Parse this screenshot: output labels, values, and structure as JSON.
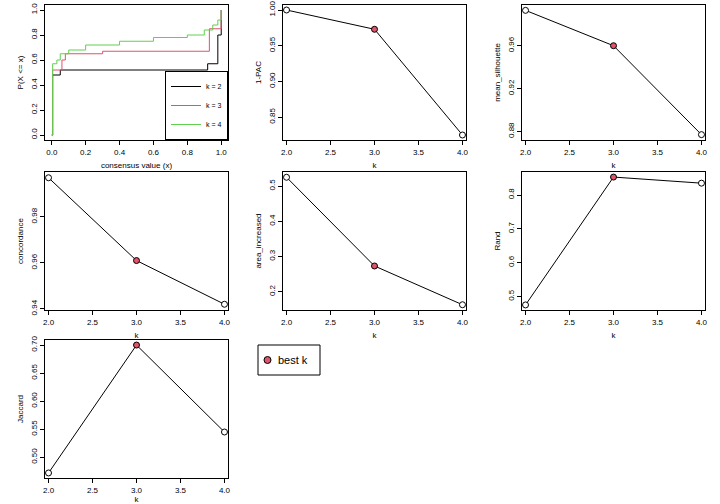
{
  "chart_data": [
    {
      "type": "line",
      "xlabel": "consensus value (x)",
      "ylabel": "P(X <= x)",
      "line_style": "step",
      "legend": "bottomright",
      "xlim": [
        -0.04,
        1.04
      ],
      "ylim": [
        -0.04,
        1.04
      ],
      "xticks": [
        {
          "value": 0,
          "label": "0.0"
        },
        0.2,
        0.4,
        0.6,
        0.8,
        {
          "value": 1,
          "label": "1.0"
        }
      ],
      "yticks": [
        {
          "value": 0,
          "label": "0.0"
        },
        0.2,
        0.4,
        0.6,
        0.8,
        {
          "value": 1,
          "label": "1.0"
        }
      ],
      "series": [
        {
          "name": "k = 2",
          "color": "black",
          "x": [
            0,
            0.005,
            0.05,
            0.92,
            0.98,
            1.0
          ],
          "values": [
            0,
            0.48,
            0.52,
            0.57,
            0.8,
            1.0
          ]
        },
        {
          "name": "k = 3",
          "color": "#DF536B",
          "x": [
            0,
            0.005,
            0.06,
            0.08,
            0.3,
            0.93,
            1.0
          ],
          "values": [
            0,
            0.52,
            0.6,
            0.65,
            0.67,
            0.85,
            1.0
          ]
        },
        {
          "name": "k = 4",
          "color": "#61D04F",
          "x": [
            0,
            0.005,
            0.03,
            0.05,
            0.1,
            0.2,
            0.4,
            0.6,
            0.8,
            0.9,
            0.95,
            0.98,
            1.0
          ],
          "values": [
            0,
            0.57,
            0.6,
            0.65,
            0.68,
            0.72,
            0.75,
            0.78,
            0.8,
            0.84,
            0.88,
            0.92,
            1.0
          ]
        }
      ]
    },
    {
      "type": "line",
      "xlabel": "k",
      "ylabel": "1-PAC",
      "marker": "circle",
      "color": "black",
      "x": [
        2,
        3,
        4
      ],
      "values": [
        1.0,
        0.973,
        0.825
      ],
      "colors": [
        "white",
        "#DF536B",
        "white"
      ],
      "xlim": [
        1.96,
        4.04
      ],
      "ylim": [
        0.818,
        1.007
      ],
      "xticks": [
        {
          "value": 2,
          "label": "2.0"
        },
        2.5,
        {
          "value": 3,
          "label": "3.0"
        },
        3.5,
        {
          "value": 4,
          "label": "4.0"
        }
      ],
      "yticks": [
        0.85,
        {
          "value": 0.9,
          "label": "0.90"
        },
        0.95,
        {
          "value": 1,
          "label": "1.00"
        }
      ]
    },
    {
      "type": "line",
      "xlabel": "k",
      "ylabel": "mean_silhouette",
      "marker": "circle",
      "color": "black",
      "x": [
        2,
        3,
        4
      ],
      "values": [
        0.993,
        0.96,
        0.877
      ],
      "colors": [
        "white",
        "#DF536B",
        "white"
      ],
      "xlim": [
        1.96,
        4.04
      ],
      "ylim": [
        0.872,
        0.998
      ],
      "xticks": [
        {
          "value": 2,
          "label": "2.0"
        },
        2.5,
        {
          "value": 3,
          "label": "3.0"
        },
        3.5,
        {
          "value": 4,
          "label": "4.0"
        }
      ],
      "yticks": [
        0.88,
        0.92,
        0.96
      ]
    },
    {
      "type": "line",
      "xlabel": "k",
      "ylabel": "concordance",
      "marker": "circle",
      "color": "black",
      "x": [
        2,
        3,
        4
      ],
      "values": [
        0.997,
        0.961,
        0.942
      ],
      "colors": [
        "white",
        "#DF536B",
        "white"
      ],
      "xlim": [
        1.96,
        4.04
      ],
      "ylim": [
        0.9395,
        0.9995
      ],
      "xticks": [
        {
          "value": 2,
          "label": "2.0"
        },
        2.5,
        {
          "value": 3,
          "label": "3.0"
        },
        3.5,
        {
          "value": 4,
          "label": "4.0"
        }
      ],
      "yticks": [
        0.94,
        0.96,
        0.98
      ]
    },
    {
      "type": "line",
      "xlabel": "k",
      "ylabel": "area_increased",
      "marker": "circle",
      "color": "black",
      "x": [
        2,
        3,
        4
      ],
      "values": [
        0.525,
        0.273,
        0.163
      ],
      "colors": [
        "white",
        "#DF536B",
        "white"
      ],
      "xlim": [
        1.96,
        4.04
      ],
      "ylim": [
        0.148,
        0.54
      ],
      "xticks": [
        {
          "value": 2,
          "label": "2.0"
        },
        2.5,
        {
          "value": 3,
          "label": "3.0"
        },
        3.5,
        {
          "value": 4,
          "label": "4.0"
        }
      ],
      "yticks": [
        0.2,
        0.3,
        0.4,
        0.5
      ]
    },
    {
      "type": "line",
      "xlabel": "k",
      "ylabel": "Rand",
      "marker": "circle",
      "color": "black",
      "x": [
        2,
        3,
        4
      ],
      "values": [
        0.475,
        0.853,
        0.835
      ],
      "colors": [
        "white",
        "#DF536B",
        "white"
      ],
      "xlim": [
        1.96,
        4.04
      ],
      "ylim": [
        0.46,
        0.868
      ],
      "xticks": [
        {
          "value": 2,
          "label": "2.0"
        },
        2.5,
        {
          "value": 3,
          "label": "3.0"
        },
        3.5,
        {
          "value": 4,
          "label": "4.0"
        }
      ],
      "yticks": [
        0.5,
        0.6,
        0.7,
        0.8
      ]
    },
    {
      "type": "line",
      "xlabel": "k",
      "ylabel": "Jaccard",
      "marker": "circle",
      "color": "black",
      "x": [
        2,
        3,
        4
      ],
      "values": [
        0.472,
        0.7,
        0.545
      ],
      "colors": [
        "white",
        "#DF536B",
        "white"
      ],
      "xlim": [
        1.96,
        4.04
      ],
      "ylim": [
        0.463,
        0.709
      ],
      "xticks": [
        {
          "value": 2,
          "label": "2.0"
        },
        2.5,
        {
          "value": 3,
          "label": "3.0"
        },
        3.5,
        {
          "value": 4,
          "label": "4.0"
        }
      ],
      "yticks": [
        {
          "value": 0.5,
          "label": "0.50"
        },
        0.55,
        {
          "value": 0.6,
          "label": "0.60"
        },
        0.65,
        {
          "value": 0.7,
          "label": "0.70"
        }
      ]
    },
    {
      "type": "legend",
      "series": [
        {
          "name": "best k",
          "color": "#DF536B",
          "marker": "circle"
        }
      ]
    }
  ]
}
